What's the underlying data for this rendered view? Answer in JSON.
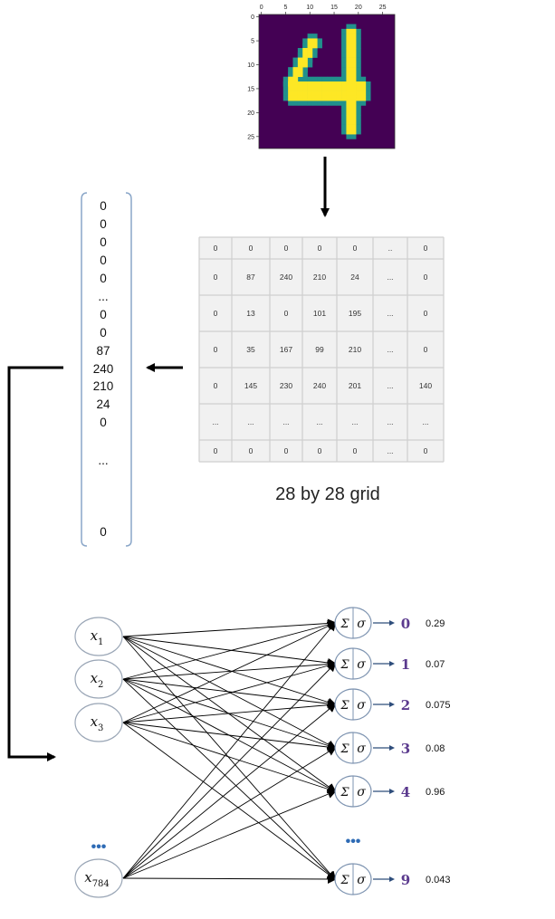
{
  "mnist_image": {
    "x_ticks": [
      "0",
      "5",
      "10",
      "15",
      "20",
      "25"
    ],
    "y_ticks": [
      "0",
      "5",
      "10",
      "15",
      "20",
      "25"
    ],
    "colors": {
      "background": "#440154",
      "stroke": "#fde725",
      "mid": "#3b9b8c",
      "edge": "#21918c"
    }
  },
  "grid_table": {
    "rows": [
      [
        "0",
        "0",
        "0",
        "0",
        "0",
        "..",
        "0"
      ],
      [
        "0",
        "87",
        "240",
        "210",
        "24",
        "...",
        "0"
      ],
      [
        "0",
        "13",
        "0",
        "101",
        "195",
        "...",
        "0"
      ],
      [
        "0",
        "35",
        "167",
        "99",
        "210",
        "...",
        "0"
      ],
      [
        "0",
        "145",
        "230",
        "240",
        "201",
        "...",
        "140"
      ],
      [
        "...",
        "...",
        "...",
        "...",
        "...",
        "...",
        "..."
      ],
      [
        "0",
        "0",
        "0",
        "0",
        "0",
        "...",
        "0"
      ]
    ],
    "caption": "28 by 28 grid"
  },
  "vector": {
    "values": [
      "0",
      "0",
      "0",
      "0",
      "0",
      "...",
      "0",
      "0",
      "87",
      "240",
      "210",
      "24",
      "0",
      "...",
      "0"
    ]
  },
  "network": {
    "inputs": [
      {
        "base": "x",
        "sub": "1"
      },
      {
        "base": "x",
        "sub": "2"
      },
      {
        "base": "x",
        "sub": "3"
      },
      {
        "base": "x",
        "sub": "784"
      }
    ],
    "input_ellipsis": "•••",
    "neuron_symbols": {
      "sum": "Σ",
      "activation": "σ"
    },
    "outputs": [
      {
        "digit": "0",
        "prob": "0.29"
      },
      {
        "digit": "1",
        "prob": "0.07"
      },
      {
        "digit": "2",
        "prob": "0.075"
      },
      {
        "digit": "3",
        "prob": "0.08"
      },
      {
        "digit": "4",
        "prob": "0.96"
      },
      {
        "digit": "9",
        "prob": "0.043"
      }
    ],
    "output_ellipsis": "•••",
    "colors": {
      "digit": "#5b3a8e",
      "arrow": "#2e4d7b",
      "dots": "#2e6bb5",
      "node_border": "#7d93b0"
    }
  }
}
